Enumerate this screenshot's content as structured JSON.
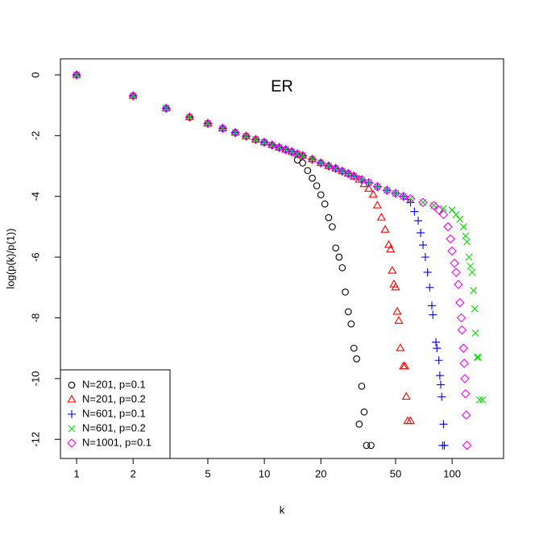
{
  "chart_data": {
    "type": "scatter",
    "title": "ER",
    "x_label": "k",
    "y_label": "log(p(k)/p(1))",
    "x_log": true,
    "xlim": [
      0.82,
      188
    ],
    "xticks": [
      1,
      2,
      5,
      10,
      20,
      50,
      100
    ],
    "ylim": [
      -12.63,
      0.53
    ],
    "yticks": [
      0,
      -2,
      -4,
      -6,
      -8,
      -10,
      -12
    ],
    "legend": "bottomleft",
    "series": [
      {
        "name": "N=201, p=0.1",
        "color": "#000000",
        "shape": "circle",
        "x": [
          1,
          2,
          3,
          4,
          5,
          6,
          7,
          8,
          9,
          10,
          11,
          12,
          13,
          14,
          15,
          16,
          17,
          18,
          19,
          20,
          21,
          22,
          23,
          24,
          25,
          26,
          27,
          28,
          29,
          30,
          31,
          32,
          33,
          34,
          35,
          37
        ],
        "values": [
          0,
          -0.69,
          -1.1,
          -1.39,
          -1.6,
          -1.76,
          -1.9,
          -2.02,
          -2.13,
          -2.22,
          -2.31,
          -2.39,
          -2.46,
          -2.53,
          -2.8,
          -2.9,
          -3.15,
          -3.4,
          -3.65,
          -3.95,
          -4.25,
          -4.7,
          -5.0,
          -5.7,
          -6.0,
          -6.35,
          -7.15,
          -7.8,
          -8.2,
          -9.0,
          -9.35,
          -11.5,
          -10.25,
          -11.1,
          -12.2,
          -12.2
        ]
      },
      {
        "name": "N=201, p=0.2",
        "color": "#ff0000",
        "shape": "triangle",
        "x": [
          1,
          2,
          3,
          4,
          5,
          6,
          7,
          8,
          9,
          10,
          11,
          12,
          13,
          14,
          15,
          16,
          18,
          20,
          22,
          24,
          26,
          28,
          30,
          32,
          34,
          36,
          38,
          40,
          42,
          44,
          46,
          47,
          48,
          49,
          50,
          51,
          52,
          53,
          55,
          56,
          57,
          58,
          60
        ],
        "values": [
          0,
          -0.69,
          -1.1,
          -1.39,
          -1.6,
          -1.76,
          -1.9,
          -2.02,
          -2.13,
          -2.22,
          -2.31,
          -2.39,
          -2.46,
          -2.53,
          -2.6,
          -2.66,
          -2.78,
          -2.9,
          -3.0,
          -3.08,
          -3.17,
          -3.25,
          -3.35,
          -3.45,
          -3.6,
          -3.75,
          -3.95,
          -4.3,
          -4.7,
          -5.1,
          -5.6,
          -5.75,
          -6.45,
          -6.9,
          -7.0,
          -7.8,
          -8.1,
          -9.0,
          -9.6,
          -9.6,
          -10.6,
          -11.4,
          -11.4
        ]
      },
      {
        "name": "N=601, p=0.1",
        "color": "#0000ff",
        "shape": "plus",
        "x": [
          1,
          2,
          3,
          4,
          5,
          6,
          7,
          8,
          9,
          10,
          11,
          12,
          13,
          14,
          15,
          16,
          18,
          20,
          22,
          24,
          26,
          28,
          30,
          33,
          36,
          40,
          45,
          50,
          55,
          58,
          60,
          63,
          66,
          68,
          70,
          72,
          74,
          76,
          78,
          79,
          82,
          83,
          85,
          86,
          87,
          88,
          89,
          90,
          91
        ],
        "values": [
          0,
          -0.69,
          -1.1,
          -1.39,
          -1.6,
          -1.76,
          -1.9,
          -2.02,
          -2.13,
          -2.22,
          -2.31,
          -2.39,
          -2.46,
          -2.53,
          -2.6,
          -2.66,
          -2.78,
          -2.9,
          -3.0,
          -3.08,
          -3.17,
          -3.25,
          -3.33,
          -3.45,
          -3.55,
          -3.68,
          -3.8,
          -3.9,
          -4.0,
          -4.1,
          -4.2,
          -4.5,
          -4.8,
          -5.2,
          -5.6,
          -6.0,
          -6.5,
          -7.0,
          -7.6,
          -7.9,
          -8.8,
          -9.0,
          -9.4,
          -9.9,
          -10.2,
          -10.6,
          -12.2,
          -11.5,
          -12.2
        ]
      },
      {
        "name": "N=601, p=0.2",
        "color": "#00dd00",
        "shape": "cross",
        "x": [
          1,
          2,
          3,
          4,
          5,
          6,
          7,
          8,
          9,
          10,
          11,
          12,
          13,
          14,
          15,
          16,
          18,
          20,
          22,
          24,
          26,
          28,
          30,
          33,
          36,
          40,
          45,
          50,
          55,
          60,
          70,
          80,
          90,
          100,
          105,
          110,
          115,
          118,
          120,
          123,
          125,
          128,
          130,
          132,
          133,
          136,
          138,
          140,
          145
        ],
        "values": [
          0,
          -0.69,
          -1.1,
          -1.39,
          -1.6,
          -1.76,
          -1.9,
          -2.02,
          -2.13,
          -2.22,
          -2.31,
          -2.39,
          -2.46,
          -2.53,
          -2.6,
          -2.66,
          -2.78,
          -2.9,
          -3.0,
          -3.08,
          -3.17,
          -3.25,
          -3.33,
          -3.45,
          -3.55,
          -3.68,
          -3.8,
          -3.9,
          -4.0,
          -4.08,
          -4.2,
          -4.3,
          -4.4,
          -4.45,
          -4.6,
          -4.75,
          -5.0,
          -5.3,
          -5.5,
          -6.0,
          -6.3,
          -6.5,
          -7.1,
          -7.7,
          -8.5,
          -9.3,
          -9.3,
          -10.7,
          -10.7
        ]
      },
      {
        "name": "N=1001, p=0.1",
        "color": "#ff00ff",
        "shape": "diamond",
        "x": [
          1,
          2,
          3,
          4,
          5,
          6,
          7,
          8,
          9,
          10,
          11,
          12,
          13,
          14,
          15,
          16,
          18,
          20,
          22,
          24,
          26,
          28,
          30,
          33,
          36,
          40,
          45,
          50,
          55,
          60,
          70,
          80,
          85,
          90,
          95,
          98,
          100,
          103,
          105,
          108,
          110,
          112,
          113,
          115,
          116,
          117,
          118,
          119,
          120
        ],
        "values": [
          0,
          -0.69,
          -1.1,
          -1.39,
          -1.6,
          -1.76,
          -1.9,
          -2.02,
          -2.13,
          -2.22,
          -2.31,
          -2.39,
          -2.46,
          -2.53,
          -2.6,
          -2.66,
          -2.78,
          -2.9,
          -3.0,
          -3.08,
          -3.17,
          -3.25,
          -3.33,
          -3.45,
          -3.55,
          -3.68,
          -3.8,
          -3.9,
          -4.0,
          -4.08,
          -4.2,
          -4.3,
          -4.45,
          -4.6,
          -5.0,
          -5.4,
          -5.8,
          -6.2,
          -6.5,
          -6.9,
          -7.5,
          -8.0,
          -8.4,
          -9.0,
          -9.5,
          -10.0,
          -10.5,
          -11.2,
          -12.2
        ]
      }
    ]
  }
}
